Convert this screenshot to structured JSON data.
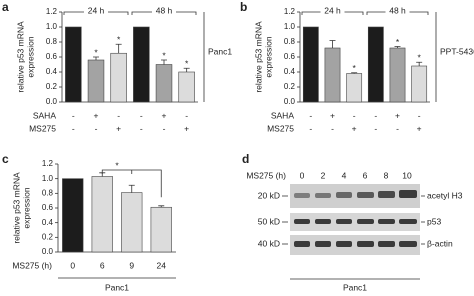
{
  "chart_data": [
    {
      "type": "bar",
      "label": "a",
      "y_label": [
        "relative p53 mRNA",
        "expression"
      ],
      "values": [
        1.0,
        0.56,
        0.65,
        1.0,
        0.5,
        0.4
      ],
      "errors": [
        null,
        0.04,
        0.12,
        null,
        0.06,
        0.05
      ],
      "colors": [
        "#1c1c1c",
        "#a3a3a3",
        "#dcdcdc",
        "#1c1c1c",
        "#a3a3a3",
        "#dcdcdc"
      ],
      "annotations": [
        null,
        "*",
        "*",
        null,
        "*",
        "*"
      ],
      "groups": [
        "24 h",
        "48 h"
      ],
      "conditions": [
        {
          "name": "SAHA",
          "marks": [
            "-",
            "+",
            "-",
            "-",
            "+",
            "-"
          ]
        },
        {
          "name": "MS275",
          "marks": [
            "-",
            "-",
            "+",
            "-",
            "-",
            "+"
          ]
        }
      ],
      "cell_line": "Panc1",
      "cell_line_position": "right",
      "ylim": [
        0,
        1.2
      ],
      "yticks": [
        {
          "value": 0,
          "label": "0.0"
        },
        {
          "value": 0.2,
          "label": "0.2"
        },
        {
          "value": 0.4,
          "label": "0.4"
        },
        {
          "value": 0.6,
          "label": "0.6"
        },
        {
          "value": 0.8,
          "label": "0.8"
        },
        {
          "value": 1,
          "label": "1.0"
        },
        {
          "value": 1.2,
          "label": "1.2"
        }
      ]
    },
    {
      "type": "bar",
      "label": "b",
      "y_label": [
        "relative p53 mRNA",
        "expression"
      ],
      "values": [
        1.0,
        0.72,
        0.38,
        1.0,
        0.72,
        0.48
      ],
      "errors": [
        null,
        0.1,
        0.01,
        null,
        0.02,
        0.05
      ],
      "colors": [
        "#1c1c1c",
        "#a3a3a3",
        "#dcdcdc",
        "#1c1c1c",
        "#a3a3a3",
        "#dcdcdc"
      ],
      "annotations": [
        null,
        null,
        "*",
        null,
        "*",
        "*"
      ],
      "groups": [
        "24 h",
        "48 h"
      ],
      "conditions": [
        {
          "name": "SAHA",
          "marks": [
            "-",
            "+",
            "-",
            "-",
            "+",
            "-"
          ]
        },
        {
          "name": "MS275",
          "marks": [
            "-",
            "-",
            "+",
            "-",
            "-",
            "+"
          ]
        }
      ],
      "cell_line": "PPT-5436",
      "cell_line_position": "right",
      "ylim": [
        0,
        1.2
      ],
      "yticks": [
        {
          "value": 0,
          "label": "0.0"
        },
        {
          "value": 0.2,
          "label": "0.2"
        },
        {
          "value": 0.4,
          "label": "0.4"
        },
        {
          "value": 0.6,
          "label": "0.6"
        },
        {
          "value": 0.8,
          "label": "0.8"
        },
        {
          "value": 1,
          "label": "1.0"
        },
        {
          "value": 1.2,
          "label": "1.2"
        }
      ]
    },
    {
      "type": "bar",
      "label": "c",
      "y_label": [
        "relative p53 mRNA",
        "expression"
      ],
      "x_label": "MS275 (h)",
      "categories": [
        "0",
        "6",
        "9",
        "24"
      ],
      "values": [
        1.0,
        1.03,
        0.81,
        0.61
      ],
      "errors": [
        null,
        0.05,
        0.1,
        0.02
      ],
      "colors": [
        "#1c1c1c",
        "#dcdcdc",
        "#dcdcdc",
        "#dcdcdc"
      ],
      "bracket_label": "*",
      "cell_line": "Panc1",
      "cell_line_position": "bottom",
      "ylim": [
        0,
        1.2
      ],
      "yticks": [
        {
          "value": 0,
          "label": "0.0"
        },
        {
          "value": 0.2,
          "label": "0.2"
        },
        {
          "value": 0.4,
          "label": "0.4"
        },
        {
          "value": 0.6,
          "label": "0.6"
        },
        {
          "value": 0.8,
          "label": "0.8"
        },
        {
          "value": 1,
          "label": "1.0"
        },
        {
          "value": 1.2,
          "label": "1.2"
        }
      ]
    }
  ],
  "blot": {
    "label": "d",
    "x_label": "MS275 (h)",
    "lanes": [
      "0",
      "2",
      "4",
      "6",
      "8",
      "10"
    ],
    "rows": [
      {
        "marker": "20 kD",
        "protein": "acetyl H3"
      },
      {
        "marker": "50 kD",
        "protein": "p53"
      },
      {
        "marker": "40 kD",
        "protein": "β-actin"
      }
    ],
    "cell_line": "Panc1"
  }
}
